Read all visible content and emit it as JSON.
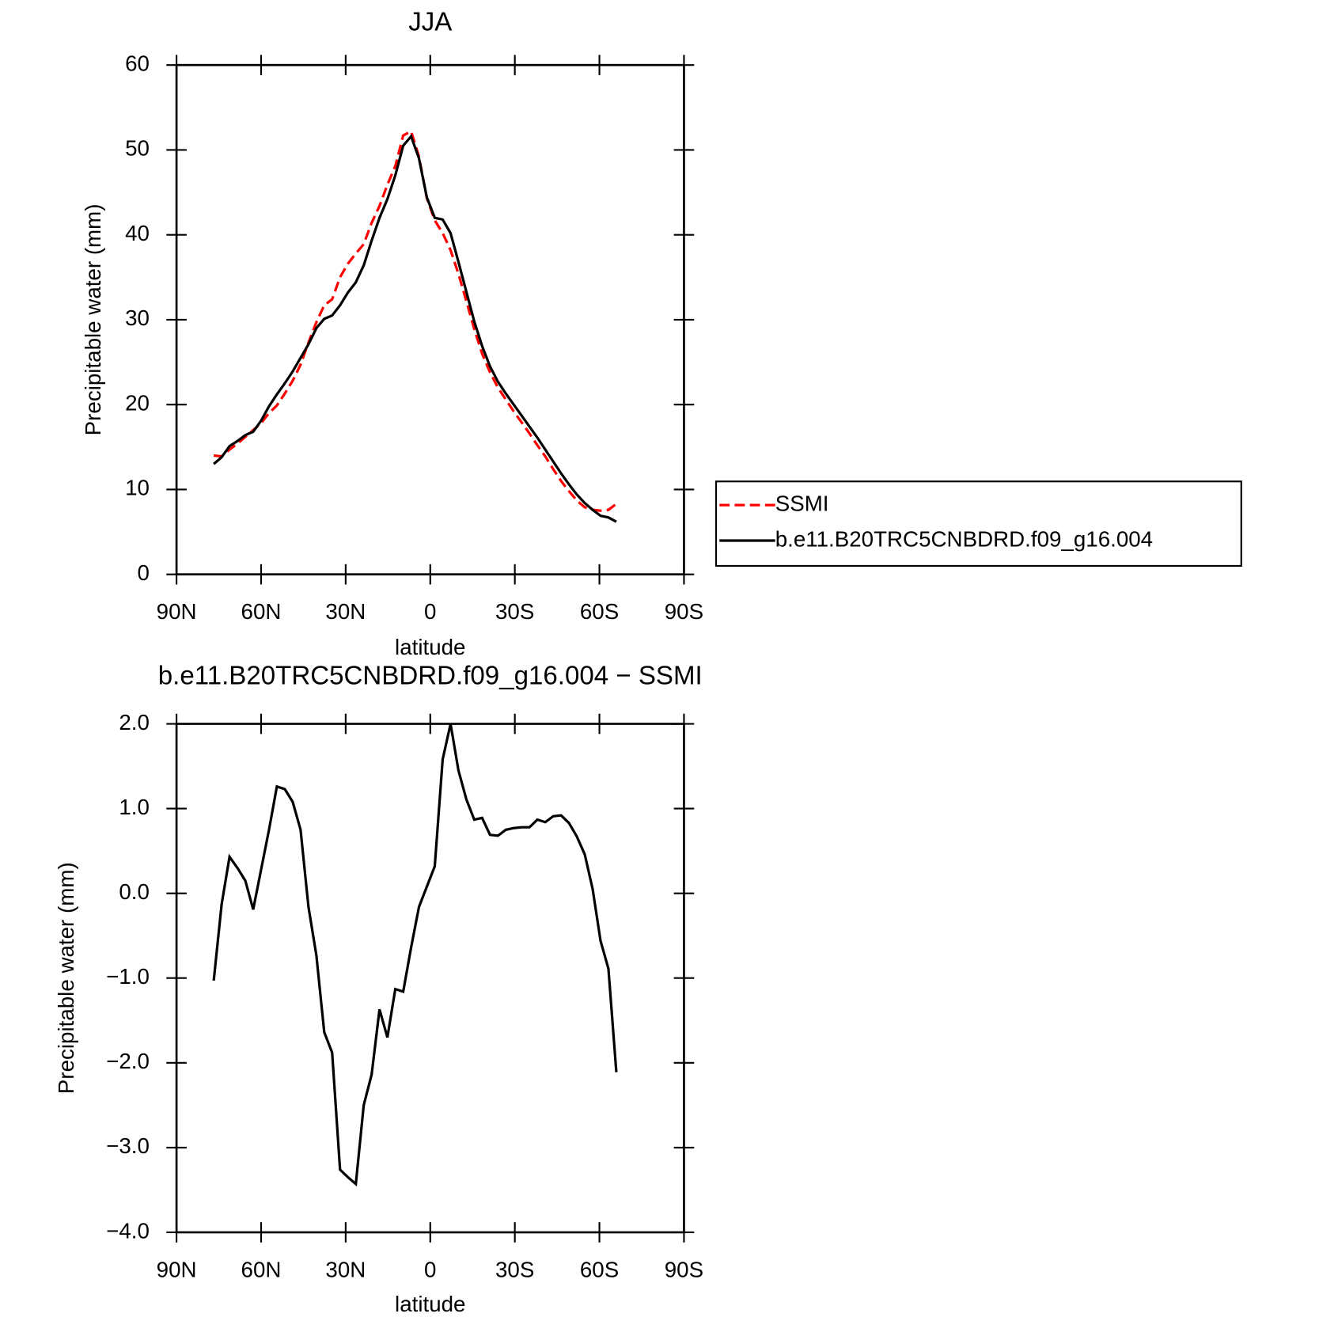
{
  "chart_data": [
    {
      "type": "line",
      "title": "JJA",
      "xlabel": "latitude",
      "ylabel": "Precipitable water (mm)",
      "x": [
        76.8,
        74,
        71.2,
        68.4,
        65.6,
        62.8,
        60,
        57.2,
        54.4,
        51.6,
        48.8,
        46,
        43.2,
        40.4,
        37.6,
        34.8,
        32,
        29.2,
        26.4,
        23.6,
        20.8,
        18,
        15.2,
        12.4,
        9.6,
        6.8,
        4,
        1.2,
        -1.6,
        -4.4,
        -7.2,
        -10,
        -12.8,
        -15.6,
        -18.4,
        -21.2,
        -24,
        -26.8,
        -29.6,
        -32.4,
        -35.2,
        -38,
        -40.8,
        -43.6,
        -46.4,
        -49.2,
        -52,
        -54.8,
        -57.6,
        -60.4,
        -63.2,
        -66
      ],
      "series": [
        {
          "name": "SSMI",
          "color": "#ff0000",
          "dash": true,
          "values": [
            14.0,
            13.9,
            14.7,
            15.4,
            16.2,
            17.0,
            17.8,
            19.0,
            19.9,
            21.3,
            22.8,
            24.7,
            27.3,
            29.7,
            31.7,
            32.4,
            35.0,
            36.6,
            37.8,
            38.9,
            41.4,
            43.4,
            45.9,
            48.1,
            51.7,
            52.2,
            49.2,
            44.3,
            41.7,
            40.2,
            38.2,
            35.4,
            32.2,
            28.9,
            26.0,
            23.8,
            22.0,
            20.6,
            19.2,
            17.9,
            16.6,
            15.2,
            13.9,
            12.4,
            11.0,
            9.8,
            8.7,
            7.9,
            7.6,
            7.5,
            7.6,
            8.3
          ]
        },
        {
          "name": "b.e11.B20TRC5CNBDRD.f09_g16.004",
          "color": "#000000",
          "dash": false,
          "values": [
            13.0,
            13.8,
            15.1,
            15.7,
            16.4,
            16.8,
            18.1,
            19.8,
            21.2,
            22.5,
            23.9,
            25.5,
            27.1,
            29.0,
            30.1,
            30.5,
            31.7,
            33.2,
            34.4,
            36.4,
            39.3,
            42.0,
            44.2,
            47.0,
            50.5,
            51.6,
            49.0,
            44.4,
            42.0,
            41.8,
            40.2,
            36.8,
            33.3,
            29.8,
            26.9,
            24.5,
            22.7,
            21.3,
            20.0,
            18.7,
            17.4,
            16.1,
            14.7,
            13.3,
            11.9,
            10.6,
            9.4,
            8.4,
            7.6,
            6.9,
            6.7,
            6.2
          ]
        }
      ],
      "xlim": [
        90,
        -90
      ],
      "xticks": [
        {
          "value": 90,
          "label": "90N"
        },
        {
          "value": 60,
          "label": "60N"
        },
        {
          "value": 30,
          "label": "30N"
        },
        0,
        {
          "value": -30,
          "label": "30S"
        },
        {
          "value": -60,
          "label": "60S"
        },
        {
          "value": -90,
          "label": "90S"
        }
      ],
      "ylim": [
        0,
        60
      ],
      "yticks": [
        0,
        10,
        20,
        30,
        40,
        50,
        60
      ],
      "legend": "outside-right"
    },
    {
      "type": "line",
      "title": "b.e11.B20TRC5CNBDRD.f09_g16.004 − SSMI",
      "xlabel": "latitude",
      "ylabel": "Precipitable water (mm)",
      "x": [
        76.8,
        74,
        71.2,
        68.4,
        65.6,
        62.8,
        60,
        57.2,
        54.4,
        51.6,
        48.8,
        46,
        43.2,
        40.4,
        37.6,
        34.8,
        32,
        29.2,
        26.4,
        23.6,
        20.8,
        18,
        15.2,
        12.4,
        9.6,
        6.8,
        4,
        1.2,
        -1.6,
        -4.4,
        -7.2,
        -10,
        -12.8,
        -15.6,
        -18.4,
        -21.2,
        -24,
        -26.8,
        -29.6,
        -32.4,
        -35.2,
        -38,
        -40.8,
        -43.6,
        -46.4,
        -49.2,
        -52,
        -54.8,
        -57.6,
        -60.4,
        -63.2,
        -66
      ],
      "color": "#000000",
      "values": [
        -1.03,
        -0.13,
        0.43,
        0.3,
        0.15,
        -0.19,
        0.28,
        0.75,
        1.26,
        1.23,
        1.08,
        0.75,
        -0.16,
        -0.73,
        -1.64,
        -1.88,
        -3.26,
        -3.35,
        -3.43,
        -2.5,
        -2.14,
        -1.37,
        -1.7,
        -1.13,
        -1.16,
        -0.64,
        -0.16,
        0.08,
        0.32,
        1.58,
        2.0,
        1.45,
        1.11,
        0.87,
        0.89,
        0.69,
        0.68,
        0.75,
        0.77,
        0.78,
        0.78,
        0.87,
        0.84,
        0.91,
        0.92,
        0.83,
        0.67,
        0.46,
        0.05,
        -0.56,
        -0.89,
        -2.11
      ],
      "xlim": [
        90,
        -90
      ],
      "xticks": [
        {
          "value": 90,
          "label": "90N"
        },
        {
          "value": 60,
          "label": "60N"
        },
        {
          "value": 30,
          "label": "30N"
        },
        0,
        {
          "value": -30,
          "label": "30S"
        },
        {
          "value": -60,
          "label": "60S"
        },
        {
          "value": -90,
          "label": "90S"
        }
      ],
      "ylim": [
        -4,
        2
      ],
      "yticks": [
        {
          "value": -4,
          "label": "−4.0"
        },
        {
          "value": -3,
          "label": "−3.0"
        },
        {
          "value": -2,
          "label": "−2.0"
        },
        {
          "value": -1,
          "label": "−1.0"
        },
        {
          "value": 0,
          "label": "0.0"
        },
        {
          "value": 1,
          "label": "1.0"
        },
        {
          "value": 2,
          "label": "2.0"
        }
      ]
    }
  ]
}
